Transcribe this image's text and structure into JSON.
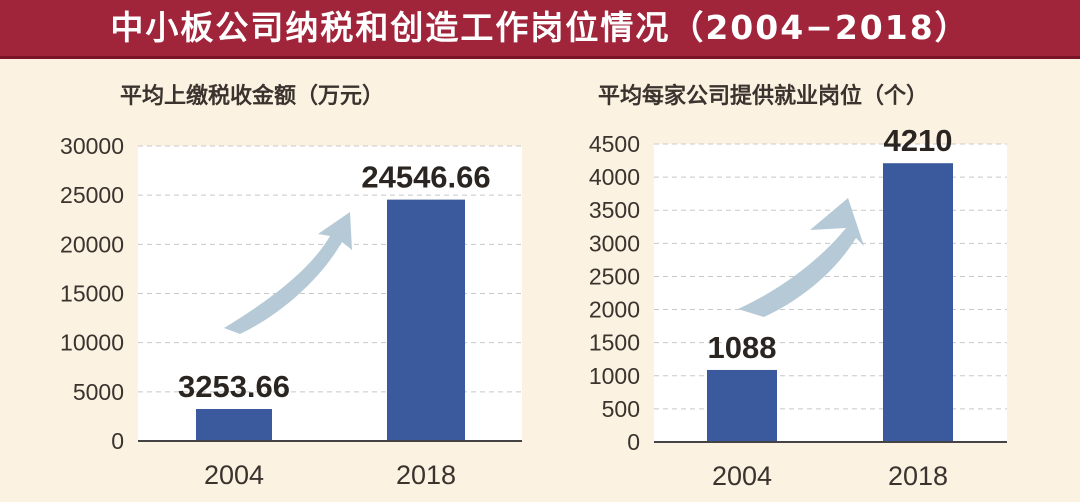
{
  "title": "中小板公司纳税和创造工作岗位情况（2004−2018）",
  "colors": {
    "bar": "#3b5a9d",
    "title_bg": "#a1253a",
    "arrow": "#b5cad6",
    "background": "#fcf2e2"
  },
  "chart_data": [
    {
      "type": "bar",
      "title": "平均上缴税收金额（万元）",
      "categories": [
        "2004",
        "2018"
      ],
      "values": [
        3253.66,
        24546.66
      ],
      "value_labels": [
        "3253.66",
        "24546.66"
      ],
      "ylim": [
        0,
        30000
      ],
      "yticks": [
        0,
        5000,
        10000,
        15000,
        20000,
        25000,
        30000
      ],
      "grid": true,
      "decoration": "upward-curved-arrow"
    },
    {
      "type": "bar",
      "title": "平均每家公司提供就业岗位（个）",
      "categories": [
        "2004",
        "2018"
      ],
      "values": [
        1088,
        4210
      ],
      "value_labels": [
        "1088",
        "4210"
      ],
      "ylim": [
        0,
        4500
      ],
      "yticks": [
        0,
        500,
        1000,
        1500,
        2000,
        2500,
        3000,
        3500,
        4000,
        4500
      ],
      "grid": true,
      "decoration": "upward-curved-arrow"
    }
  ]
}
